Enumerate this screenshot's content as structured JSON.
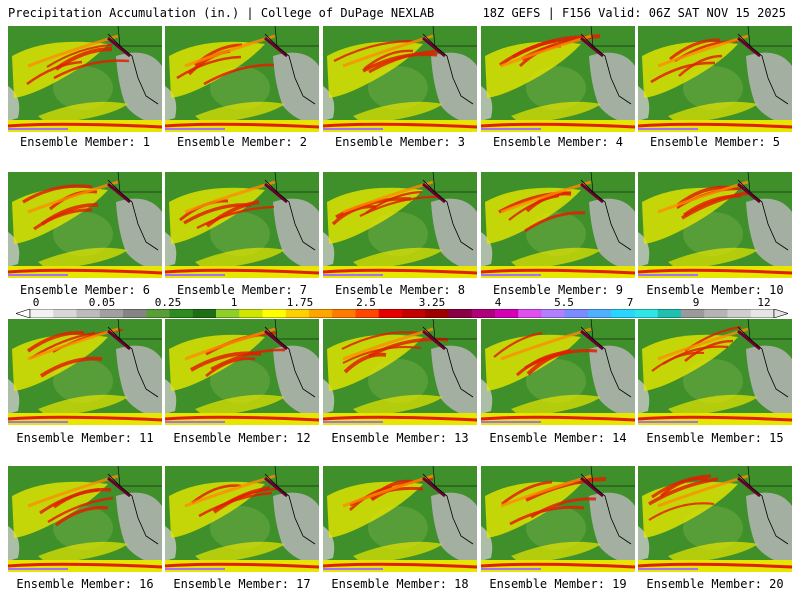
{
  "header": {
    "left_title": "Precipitation Accumulation (in.) | College of DuPage NEXLAB",
    "right_title": "18Z GEFS | F156 Valid: 06Z SAT NOV 15 2025"
  },
  "members": [
    {
      "label": "Ensemble Member: 1"
    },
    {
      "label": "Ensemble Member: 2"
    },
    {
      "label": "Ensemble Member: 3"
    },
    {
      "label": "Ensemble Member: 4"
    },
    {
      "label": "Ensemble Member: 5"
    },
    {
      "label": "Ensemble Member: 6"
    },
    {
      "label": "Ensemble Member: 7"
    },
    {
      "label": "Ensemble Member: 8"
    },
    {
      "label": "Ensemble Member: 9"
    },
    {
      "label": "Ensemble Member: 10"
    },
    {
      "label": "Ensemble Member: 11"
    },
    {
      "label": "Ensemble Member: 12"
    },
    {
      "label": "Ensemble Member: 13"
    },
    {
      "label": "Ensemble Member: 14"
    },
    {
      "label": "Ensemble Member: 15"
    },
    {
      "label": "Ensemble Member: 16"
    },
    {
      "label": "Ensemble Member: 17"
    },
    {
      "label": "Ensemble Member: 18"
    },
    {
      "label": "Ensemble Member: 19"
    },
    {
      "label": "Ensemble Member: 20"
    }
  ],
  "colorbar": {
    "tick_labels": [
      "0",
      "0.05",
      "0.25",
      "1",
      "1.75",
      "2.5",
      "3.25",
      "4",
      "5.5",
      "7",
      "9",
      "12"
    ],
    "colors": [
      "#f2f2f2",
      "#d8d8d8",
      "#bcbcbc",
      "#a0a0a0",
      "#848484",
      "#5a9e3a",
      "#2e8b22",
      "#1f6e17",
      "#8fcf2a",
      "#cfe600",
      "#ffff00",
      "#ffd000",
      "#ffa500",
      "#ff7a00",
      "#ff4500",
      "#e60000",
      "#c40000",
      "#9e0000",
      "#8b0045",
      "#b0007a",
      "#d400b4",
      "#e050f0",
      "#b080ff",
      "#7a8cff",
      "#4fb0ff",
      "#29d4ff",
      "#2ee6e6",
      "#20c0b0",
      "#9a9a9a",
      "#b4b4b4",
      "#cfcfcf",
      "#e6e6e6"
    ]
  }
}
